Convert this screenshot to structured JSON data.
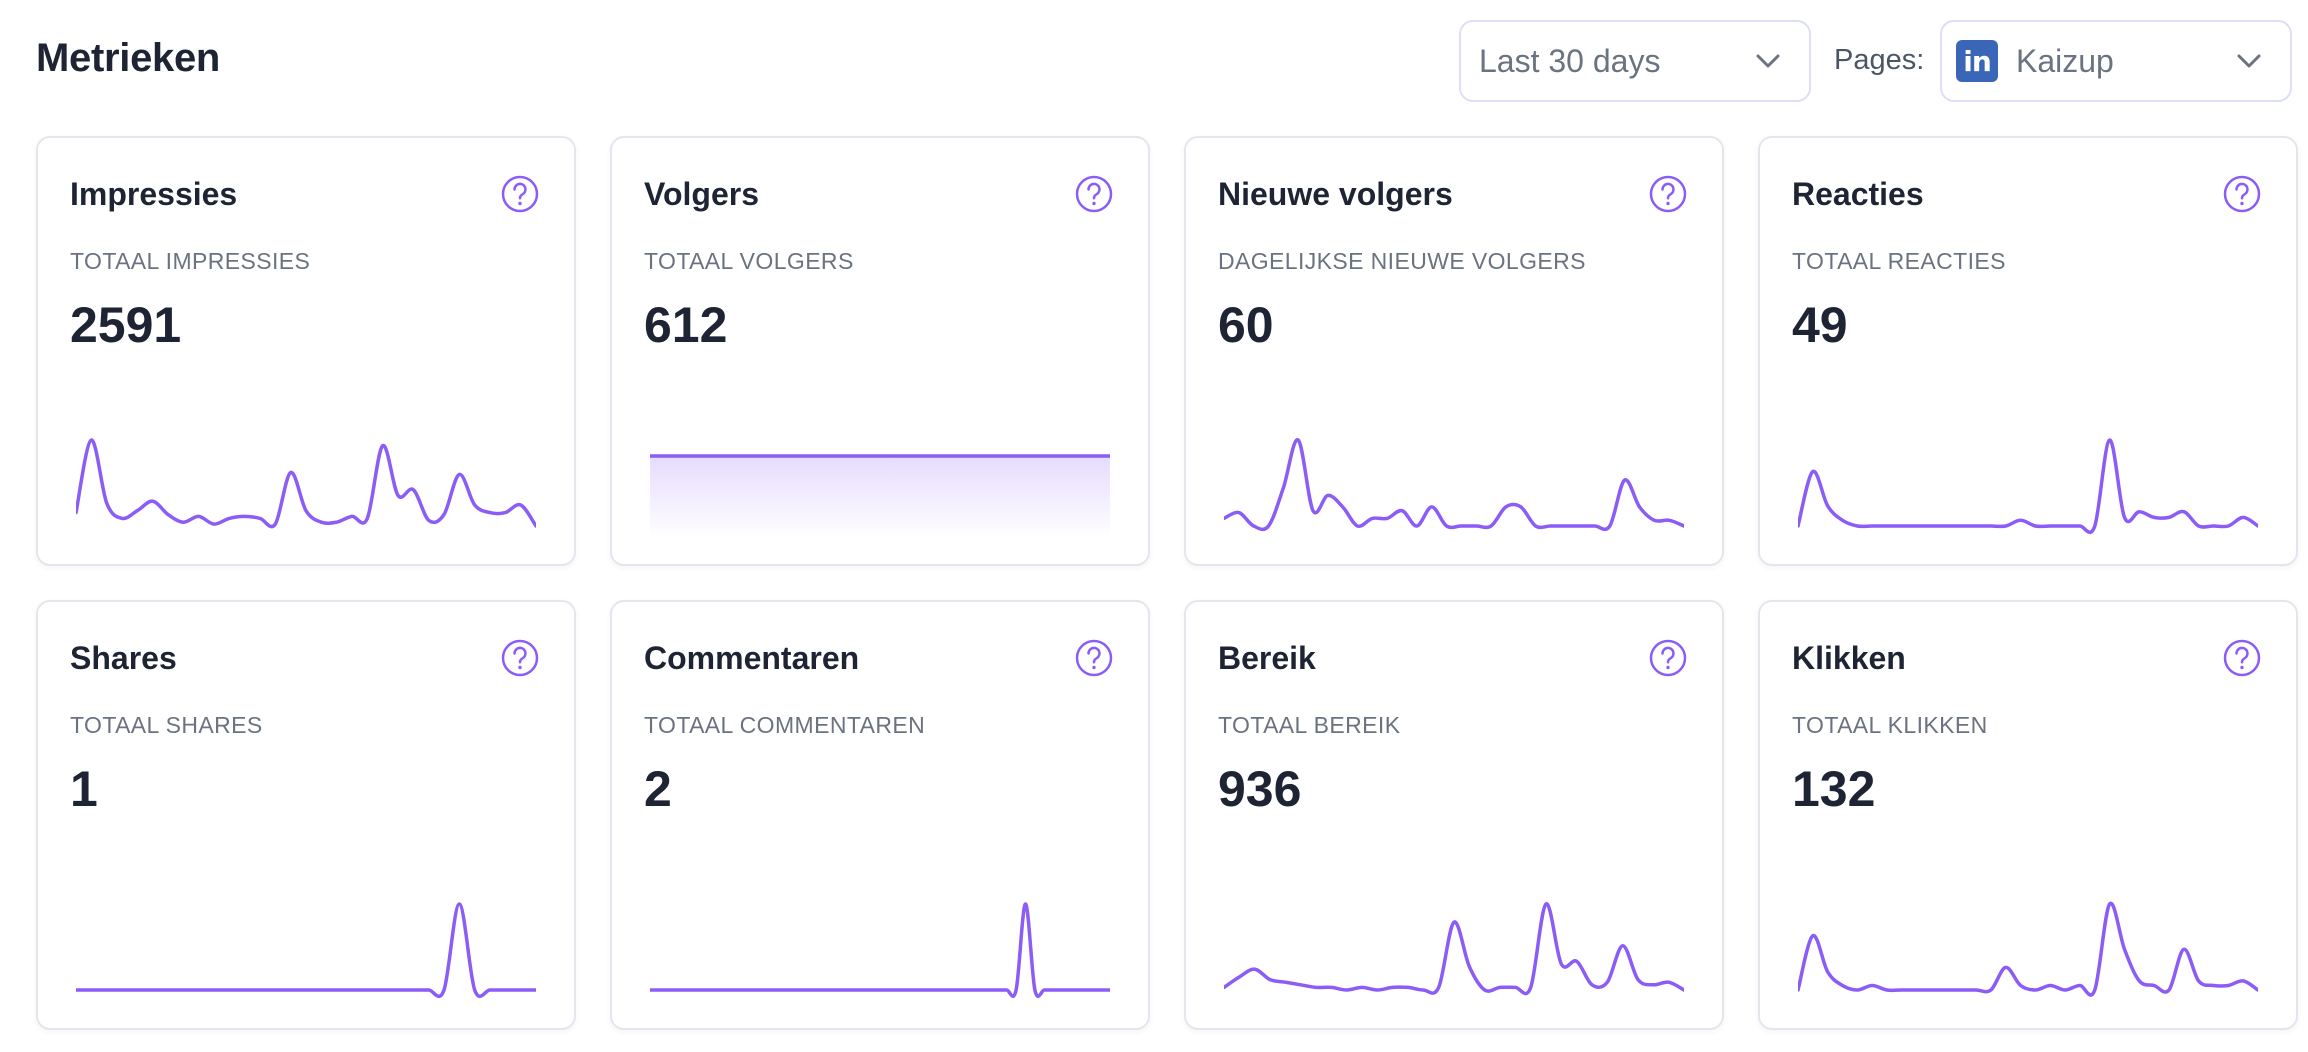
{
  "header": {
    "title": "Metrieken",
    "date_range": {
      "value": "Last 30 days",
      "icon": "chevron-down-icon"
    },
    "pages_label": "Pages:",
    "page_select": {
      "value": "Kaizup",
      "logo": "linkedin-icon",
      "logo_text": "in",
      "icon": "chevron-down-icon"
    }
  },
  "colors": {
    "accent": "#8b5cf6",
    "border": "#e4e6ee",
    "title": "#1e2433",
    "muted": "#6b7280"
  },
  "cards": [
    {
      "title": "Impressies",
      "subtitle": "TOTAAL IMPRESSIES",
      "value": "2591",
      "series": [
        10,
        48,
        15,
        7,
        11,
        16,
        9,
        5,
        8,
        4,
        7,
        8,
        7,
        4,
        31,
        11,
        5,
        5,
        8,
        7,
        45,
        19,
        22,
        6,
        9,
        30,
        14,
        10,
        10,
        14,
        3
      ]
    },
    {
      "title": "Volgers",
      "subtitle": "TOTAAL VOLGERS",
      "value": "612",
      "filled": true,
      "series": [
        612,
        612,
        612,
        612,
        612,
        612,
        612,
        612,
        612,
        612,
        612,
        612,
        612,
        612,
        612,
        612,
        612,
        612,
        612,
        612,
        612,
        612,
        612,
        612,
        612,
        612,
        612,
        612,
        612,
        612,
        612
      ]
    },
    {
      "title": "Nieuwe volgers",
      "subtitle": "DAGELIJKSE NIEUWE VOLGERS",
      "value": "60",
      "series": [
        4,
        7,
        0,
        0,
        20,
        45,
        8,
        16,
        10,
        0,
        4,
        4,
        8,
        0,
        10,
        0,
        0,
        0,
        0,
        10,
        10,
        0,
        0,
        0,
        0,
        0,
        0,
        24,
        10,
        3,
        3,
        0
      ]
    },
    {
      "title": "Reacties",
      "subtitle": "TOTAAL REACTIES",
      "value": "49",
      "series": [
        0,
        19,
        7,
        2,
        0,
        0,
        0,
        0,
        0,
        0,
        0,
        0,
        0,
        0,
        0,
        2,
        0,
        0,
        0,
        0,
        0,
        30,
        3,
        5,
        3,
        3,
        5,
        0,
        0,
        0,
        3,
        0
      ]
    },
    {
      "title": "Shares",
      "subtitle": "TOTAAL SHARES",
      "value": "1",
      "series": [
        0,
        0,
        0,
        0,
        0,
        0,
        0,
        0,
        0,
        0,
        0,
        0,
        0,
        0,
        0,
        0,
        0,
        0,
        0,
        0,
        0,
        0,
        0,
        0,
        0,
        1,
        0,
        0,
        0,
        0,
        0
      ]
    },
    {
      "title": "Commentaren",
      "subtitle": "TOTAAL COMMENTAREN",
      "value": "2",
      "series": [
        0,
        0,
        0,
        0,
        0,
        0,
        0,
        0,
        0,
        0,
        0,
        0,
        0,
        0,
        0,
        0,
        0,
        0,
        0,
        0,
        0,
        0,
        0,
        0,
        0,
        0,
        0,
        0,
        0,
        0,
        0,
        0,
        0,
        0,
        0,
        0,
        0,
        0,
        0,
        0,
        1,
        0,
        0,
        0,
        0,
        0,
        0,
        0,
        0,
        0
      ]
    },
    {
      "title": "Bereik",
      "subtitle": "TOTAAL BEREIK",
      "value": "936",
      "series": [
        1,
        5,
        8,
        4,
        3,
        2,
        1,
        1,
        0,
        1,
        0,
        1,
        1,
        0,
        1,
        26,
        9,
        0,
        1,
        1,
        1,
        33,
        10,
        11,
        2,
        3,
        17,
        4,
        2,
        3,
        0
      ]
    },
    {
      "title": "Klikken",
      "subtitle": "TOTAAL KLIKKEN",
      "value": "132",
      "series": [
        0,
        12,
        4,
        1,
        0,
        1,
        0,
        0,
        0,
        0,
        0,
        0,
        0,
        0,
        5,
        1,
        0,
        1,
        0,
        1,
        0,
        19,
        9,
        2,
        1,
        0,
        9,
        2,
        1,
        1,
        2,
        0
      ]
    }
  ]
}
